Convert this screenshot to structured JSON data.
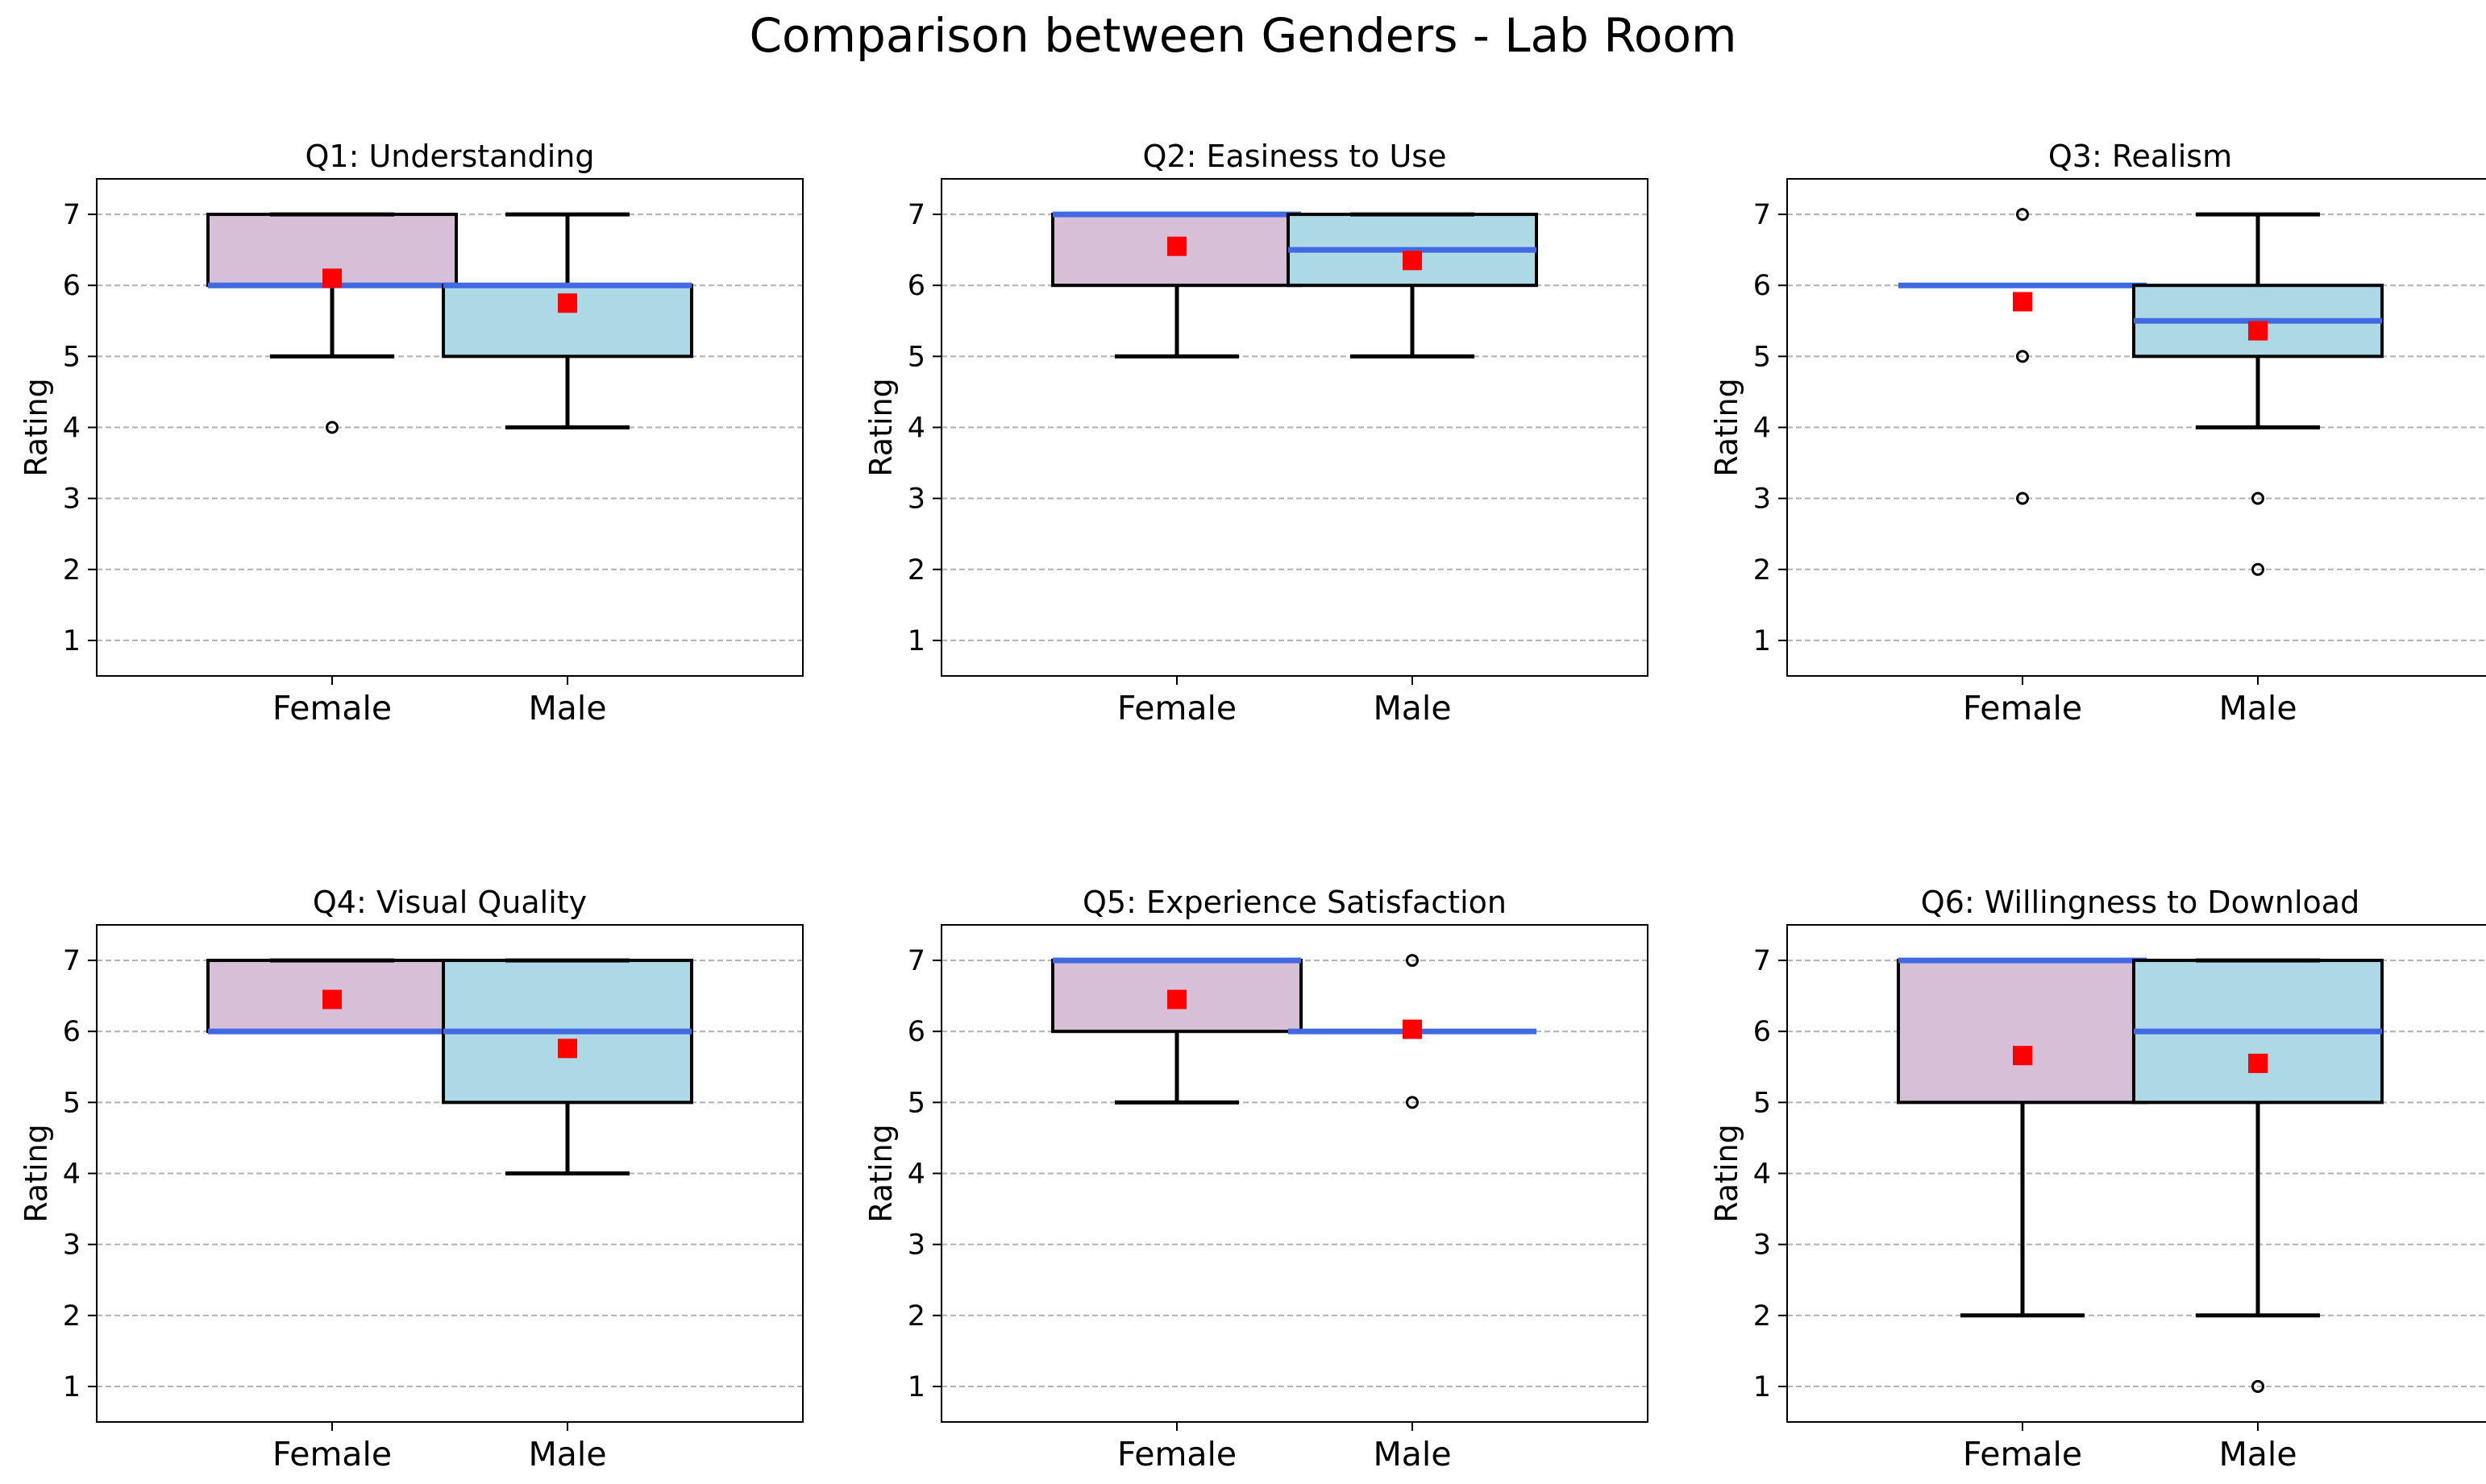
{
  "figure": {
    "suptitle": "Comparison between Genders - Lab Room",
    "colors": {
      "female_fill": "#d8bfd8",
      "male_fill": "#add8e6",
      "median": "#4169e1",
      "mean": "#ff0000",
      "box_edge": "#000000",
      "grid": "#b0b0b0"
    }
  },
  "chart_data": [
    {
      "type": "box",
      "title": "Q1: Understanding",
      "ylabel": "Rating",
      "ylim": [
        0.5,
        7.5
      ],
      "yticks": [
        "1",
        "2",
        "3",
        "4",
        "5",
        "6",
        "7"
      ],
      "categories": [
        "Female",
        "Male"
      ],
      "boxes": [
        {
          "group": "Female",
          "whisker_low": 5,
          "q1": 6,
          "median": 6,
          "q3": 7,
          "whisker_high": 7,
          "mean": 6.1,
          "outliers": [
            4
          ]
        },
        {
          "group": "Male",
          "whisker_low": 4,
          "q1": 5,
          "median": 6,
          "q3": 6,
          "whisker_high": 7,
          "mean": 5.75,
          "outliers": []
        }
      ]
    },
    {
      "type": "box",
      "title": "Q2: Easiness to Use",
      "ylabel": "Rating",
      "ylim": [
        0.5,
        7.5
      ],
      "yticks": [
        "1",
        "2",
        "3",
        "4",
        "5",
        "6",
        "7"
      ],
      "categories": [
        "Female",
        "Male"
      ],
      "boxes": [
        {
          "group": "Female",
          "whisker_low": 5,
          "q1": 6,
          "median": 7,
          "q3": 7,
          "whisker_high": 7,
          "mean": 6.55,
          "outliers": []
        },
        {
          "group": "Male",
          "whisker_low": 5,
          "q1": 6,
          "median": 6.5,
          "q3": 7,
          "whisker_high": 7,
          "mean": 6.35,
          "outliers": []
        }
      ]
    },
    {
      "type": "box",
      "title": "Q3: Realism",
      "ylabel": "Rating",
      "ylim": [
        0.5,
        7.5
      ],
      "yticks": [
        "1",
        "2",
        "3",
        "4",
        "5",
        "6",
        "7"
      ],
      "categories": [
        "Female",
        "Male"
      ],
      "boxes": [
        {
          "group": "Female",
          "whisker_low": 6,
          "q1": 6,
          "median": 6,
          "q3": 6,
          "whisker_high": 6,
          "mean": 5.77,
          "outliers": [
            7,
            5,
            3
          ]
        },
        {
          "group": "Male",
          "whisker_low": 4,
          "q1": 5,
          "median": 5.5,
          "q3": 6,
          "whisker_high": 7,
          "mean": 5.36,
          "outliers": [
            3,
            2
          ]
        }
      ]
    },
    {
      "type": "box",
      "title": "Q4: Visual Quality",
      "ylabel": "Rating",
      "ylim": [
        0.5,
        7.5
      ],
      "yticks": [
        "1",
        "2",
        "3",
        "4",
        "5",
        "6",
        "7"
      ],
      "categories": [
        "Female",
        "Male"
      ],
      "boxes": [
        {
          "group": "Female",
          "whisker_low": 6,
          "q1": 6,
          "median": 6,
          "q3": 7,
          "whisker_high": 7,
          "mean": 6.45,
          "outliers": []
        },
        {
          "group": "Male",
          "whisker_low": 4,
          "q1": 5,
          "median": 6,
          "q3": 7,
          "whisker_high": 7,
          "mean": 5.76,
          "outliers": []
        }
      ]
    },
    {
      "type": "box",
      "title": "Q5: Experience Satisfaction",
      "ylabel": "Rating",
      "ylim": [
        0.5,
        7.5
      ],
      "yticks": [
        "1",
        "2",
        "3",
        "4",
        "5",
        "6",
        "7"
      ],
      "categories": [
        "Female",
        "Male"
      ],
      "boxes": [
        {
          "group": "Female",
          "whisker_low": 5,
          "q1": 6,
          "median": 7,
          "q3": 7,
          "whisker_high": 7,
          "mean": 6.45,
          "outliers": []
        },
        {
          "group": "Male",
          "whisker_low": 6,
          "q1": 6,
          "median": 6,
          "q3": 6,
          "whisker_high": 6,
          "mean": 6.03,
          "outliers": [
            7,
            5
          ]
        }
      ]
    },
    {
      "type": "box",
      "title": "Q6: Willingness to Download",
      "ylabel": "Rating",
      "ylim": [
        0.5,
        7.5
      ],
      "yticks": [
        "1",
        "2",
        "3",
        "4",
        "5",
        "6",
        "7"
      ],
      "categories": [
        "Female",
        "Male"
      ],
      "boxes": [
        {
          "group": "Female",
          "whisker_low": 2,
          "q1": 5,
          "median": 7,
          "q3": 7,
          "whisker_high": 7,
          "mean": 5.66,
          "outliers": []
        },
        {
          "group": "Male",
          "whisker_low": 2,
          "q1": 5,
          "median": 6,
          "q3": 7,
          "whisker_high": 7,
          "mean": 5.55,
          "outliers": [
            1
          ]
        }
      ]
    }
  ]
}
